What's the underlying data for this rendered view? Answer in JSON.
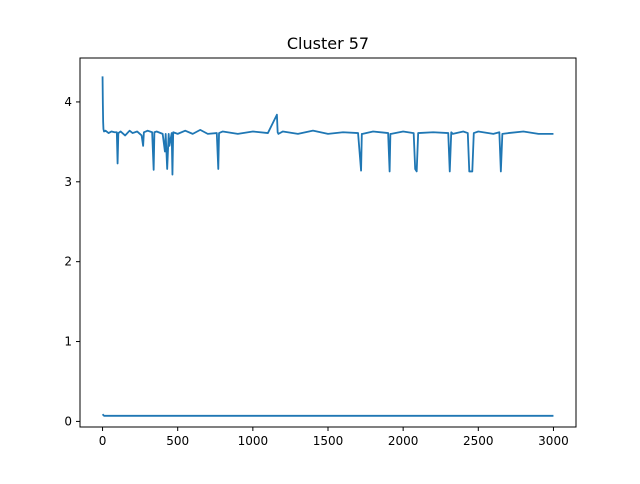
{
  "chart_data": {
    "type": "line",
    "title": "Cluster 57",
    "xlabel": "",
    "ylabel": "",
    "xlim": [
      -150,
      3150
    ],
    "ylim": [
      -0.07,
      4.55
    ],
    "grid": false,
    "legend": "none",
    "x_ticks": [
      0,
      500,
      1000,
      1500,
      2000,
      2500,
      3000
    ],
    "x_tick_labels": [
      "0",
      "500",
      "1000",
      "1500",
      "2000",
      "2500",
      "3000"
    ],
    "y_ticks": [
      0,
      1,
      2,
      3,
      4
    ],
    "y_tick_labels": [
      "0",
      "1",
      "2",
      "3",
      "4"
    ],
    "line_color": "#1f77b4",
    "series": [
      {
        "description": "upper series",
        "x": [
          0,
          2,
          4,
          6,
          10,
          20,
          40,
          60,
          80,
          95,
          100,
          105,
          120,
          150,
          180,
          200,
          230,
          260,
          270,
          275,
          300,
          330,
          340,
          345,
          360,
          400,
          415,
          420,
          430,
          440,
          445,
          460,
          465,
          470,
          500,
          550,
          600,
          650,
          700,
          760,
          770,
          775,
          800,
          900,
          1000,
          1100,
          1160,
          1165,
          1170,
          1200,
          1300,
          1400,
          1500,
          1600,
          1700,
          1720,
          1725,
          1730,
          1800,
          1900,
          1910,
          1915,
          1920,
          2000,
          2070,
          2080,
          2090,
          2100,
          2200,
          2300,
          2310,
          2320,
          2330,
          2400,
          2430,
          2440,
          2450,
          2460,
          2470,
          2500,
          2600,
          2640,
          2650,
          2660,
          2700,
          2800,
          2900,
          3000
        ],
        "y": [
          4.32,
          3.98,
          3.75,
          3.66,
          3.63,
          3.64,
          3.61,
          3.63,
          3.62,
          3.62,
          3.23,
          3.61,
          3.63,
          3.58,
          3.64,
          3.61,
          3.63,
          3.58,
          3.45,
          3.62,
          3.64,
          3.62,
          3.15,
          3.62,
          3.63,
          3.6,
          3.38,
          3.6,
          3.16,
          3.6,
          3.45,
          3.61,
          3.09,
          3.62,
          3.6,
          3.64,
          3.6,
          3.65,
          3.6,
          3.61,
          3.16,
          3.61,
          3.63,
          3.6,
          3.63,
          3.61,
          3.84,
          3.62,
          3.6,
          3.63,
          3.6,
          3.64,
          3.6,
          3.62,
          3.61,
          3.14,
          3.6,
          3.6,
          3.63,
          3.61,
          3.13,
          3.6,
          3.6,
          3.63,
          3.61,
          3.16,
          3.13,
          3.61,
          3.62,
          3.61,
          3.13,
          3.62,
          3.6,
          3.63,
          3.61,
          3.13,
          3.13,
          3.13,
          3.61,
          3.63,
          3.6,
          3.62,
          3.13,
          3.6,
          3.61,
          3.63,
          3.6,
          3.6
        ]
      },
      {
        "description": "lower series",
        "x": [
          0,
          5,
          10,
          20,
          3000
        ],
        "y": [
          0.09,
          0.08,
          0.07,
          0.07,
          0.07
        ]
      }
    ]
  }
}
